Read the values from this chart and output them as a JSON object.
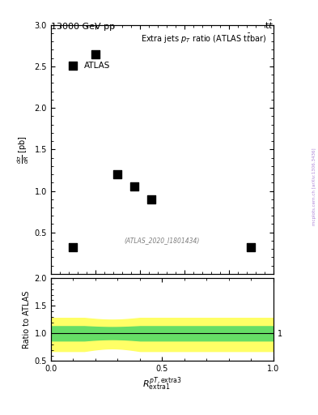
{
  "header_left": "13000 GeV pp",
  "header_right": "t$\\bar{t}$",
  "title": "Extra jets $p_T$ ratio (ATLAS t$\\bar{t}$bar)",
  "xlabel_main": "",
  "xlabel_ratio": "$R_{\\mathrm{extra1}}^{pT,\\mathrm{extra3}}$",
  "ylabel_main": "$\\frac{d\\sigma}{dR}$ [pb]",
  "ylabel_ratio": "Ratio to ATLAS",
  "annotation": "(ATLAS_2020_I1801434)",
  "data_x": [
    0.1,
    0.2,
    0.3,
    0.375,
    0.45,
    0.9
  ],
  "data_y": [
    0.32,
    2.65,
    1.2,
    1.05,
    0.9,
    0.32
  ],
  "xlim": [
    0.0,
    1.0
  ],
  "ylim_main": [
    0.0,
    3.0
  ],
  "ylim_ratio": [
    0.5,
    2.0
  ],
  "ratio_line": 1.0,
  "green_band_lo": 0.87,
  "green_band_hi": 1.13,
  "yellow_band_lo": 0.68,
  "yellow_band_hi": 1.28,
  "green_band_lo2": 0.9,
  "green_band_hi2": 1.1,
  "yellow_band_lo2": 0.72,
  "yellow_band_hi2": 1.22,
  "main_yticks": [
    0.5,
    1.0,
    1.5,
    2.0,
    2.5,
    3.0
  ],
  "ratio_yticks": [
    0.5,
    1.0,
    1.5,
    2.0
  ],
  "marker_color": "black",
  "marker": "s",
  "marker_size": 5,
  "legend_label": "ATLAS",
  "background_color": "white",
  "right_label": "mcplots.cern.ch [arXiv:1306.3436]"
}
